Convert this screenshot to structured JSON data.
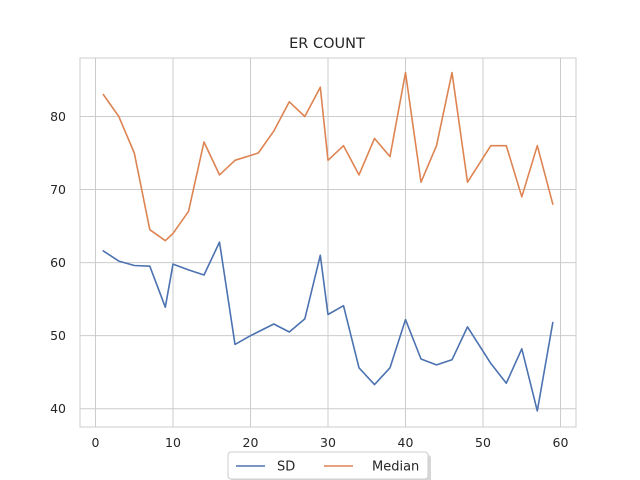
{
  "chart_data": {
    "type": "line",
    "title": "ER COUNT",
    "xlabel": "",
    "ylabel": "",
    "xlim": [
      -2,
      62
    ],
    "ylim": [
      37.5,
      88
    ],
    "xticks": [
      0,
      10,
      20,
      30,
      40,
      50,
      60
    ],
    "yticks": [
      40,
      50,
      60,
      70,
      80
    ],
    "xtick_labels": [
      "0",
      "10",
      "20",
      "30",
      "40",
      "50",
      "60"
    ],
    "ytick_labels": [
      "40",
      "50",
      "60",
      "70",
      "80"
    ],
    "grid": true,
    "legend_position": "bottom-center",
    "series": [
      {
        "name": "SD",
        "color": "#4c72b0",
        "x": [
          1,
          3,
          5,
          7,
          9,
          10,
          12,
          14,
          16,
          18,
          20,
          23,
          25,
          27,
          29,
          30,
          32,
          34,
          36,
          38,
          40,
          42,
          44,
          46,
          48,
          51,
          53,
          55,
          57,
          59
        ],
        "y": [
          61.6,
          60.2,
          59.6,
          59.5,
          53.9,
          59.8,
          59.0,
          58.3,
          62.8,
          48.8,
          50.0,
          51.6,
          50.5,
          52.3,
          61.0,
          52.9,
          54.1,
          45.6,
          43.3,
          45.6,
          52.2,
          46.8,
          46.0,
          46.7,
          51.2,
          46.2,
          43.5,
          48.2,
          39.7,
          51.8
        ]
      },
      {
        "name": "Median",
        "color": "#dd8452",
        "x": [
          1,
          3,
          5,
          7,
          9,
          10,
          12,
          14,
          16,
          18,
          21,
          23,
          25,
          27,
          29,
          30,
          32,
          34,
          36,
          38,
          40,
          42,
          44,
          46,
          48,
          51,
          53,
          55,
          57,
          59
        ],
        "y": [
          83,
          80,
          75,
          64.5,
          63,
          64,
          67,
          76.5,
          72,
          74,
          75,
          78,
          82,
          80,
          84,
          74,
          76,
          72,
          77,
          74.5,
          86,
          71,
          76,
          86,
          71,
          76,
          76,
          69,
          76,
          68
        ]
      }
    ]
  }
}
